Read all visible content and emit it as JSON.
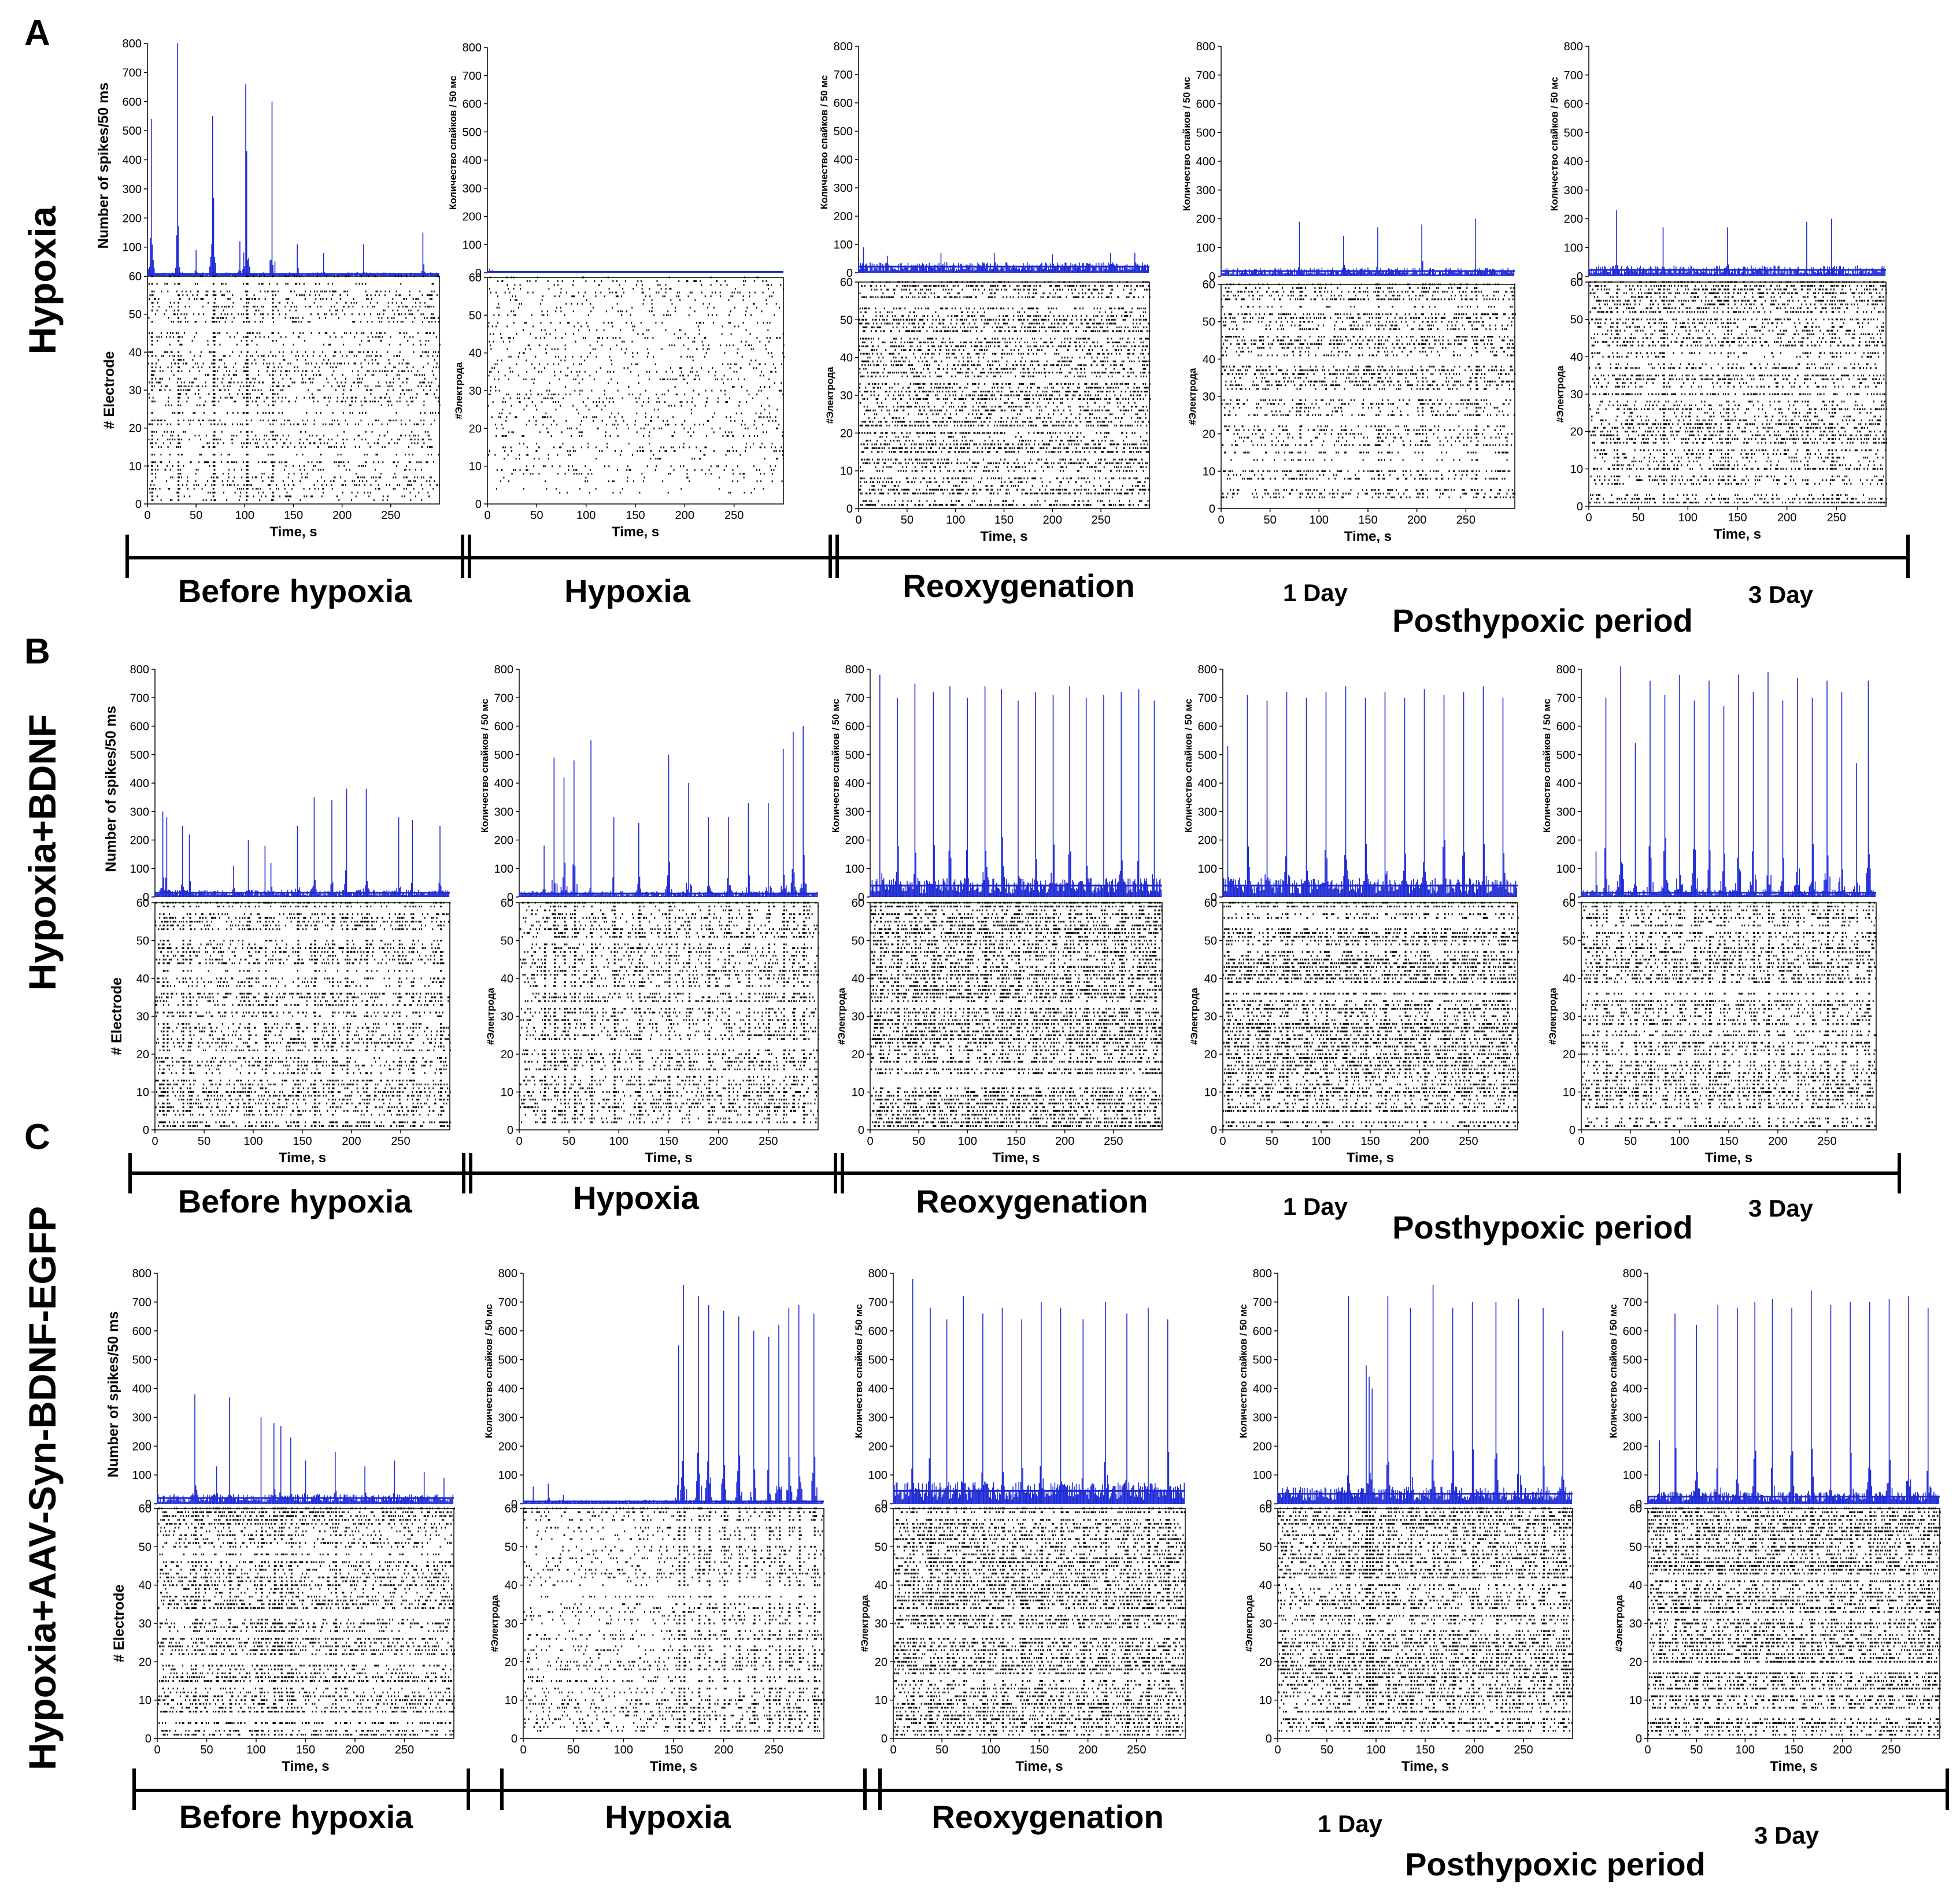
{
  "chart_data": {
    "type": "multi-panel spike histogram + raster",
    "panel_letters": [
      "A",
      "B",
      "C"
    ],
    "x_axis": {
      "label": "Time, s",
      "range": [
        0,
        300
      ],
      "ticks": [
        0,
        50,
        100,
        150,
        200,
        250
      ]
    },
    "spike_axis": {
      "range": [
        0,
        800
      ],
      "ticks": [
        0,
        100,
        200,
        300,
        400,
        500,
        600,
        700,
        800
      ]
    },
    "electrode_axis": {
      "range": [
        0,
        60
      ],
      "ticks": [
        0,
        10,
        20,
        30,
        40,
        50,
        60
      ]
    },
    "ylabels": {
      "spikes_en": "Number of spikes/50 ms",
      "electrode_en": "# Electrode",
      "spikes_ru": "Количество спайков / 50 мс",
      "electrode_ru": "#Электрода"
    },
    "phases": [
      "Before hypoxia",
      "Hypoxia",
      "Reoxygenation"
    ],
    "days": [
      "1 Day",
      "3 Day"
    ],
    "posthypoxic_label": "Posthypoxic period",
    "colors": {
      "histogram": "#1f2bd6",
      "raster": "#000000"
    },
    "rows": [
      {
        "name": "Hypoxia",
        "panels": [
          {
            "phase": "Before hypoxia",
            "baseline": 8,
            "peaks": [
              [
                4,
                540
              ],
              [
                31,
                800
              ],
              [
                50,
                90
              ],
              [
                67,
                550
              ],
              [
                68,
                270
              ],
              [
                95,
                120
              ],
              [
                101,
                660
              ],
              [
                102,
                430
              ],
              [
                128,
                600
              ],
              [
                154,
                110
              ],
              [
                181,
                80
              ],
              [
                222,
                110
              ],
              [
                283,
                150
              ]
            ]
          },
          {
            "phase": "Hypoxia",
            "baseline": 3,
            "peaks": [
              [
                2,
                15
              ],
              [
                5,
                10
              ]
            ]
          },
          {
            "phase": "Reoxygenation",
            "baseline": 22,
            "peaks": [
              [
                5,
                90
              ],
              [
                30,
                60
              ],
              [
                85,
                70
              ],
              [
                140,
                70
              ],
              [
                200,
                65
              ],
              [
                260,
                70
              ],
              [
                285,
                70
              ]
            ]
          },
          {
            "phase": "1 Day",
            "baseline": 18,
            "peaks": [
              [
                80,
                190
              ],
              [
                125,
                140
              ],
              [
                160,
                170
              ],
              [
                205,
                180
              ],
              [
                260,
                200
              ]
            ]
          },
          {
            "phase": "3 Day",
            "baseline": 22,
            "peaks": [
              [
                28,
                230
              ],
              [
                75,
                170
              ],
              [
                140,
                170
              ],
              [
                220,
                190
              ],
              [
                245,
                200
              ]
            ]
          }
        ]
      },
      {
        "name": "Hypoxia+BDNF",
        "panels": [
          {
            "phase": "Before hypoxia",
            "baseline": 15,
            "peaks": [
              [
                8,
                300
              ],
              [
                12,
                280
              ],
              [
                28,
                250
              ],
              [
                35,
                220
              ],
              [
                80,
                110
              ],
              [
                95,
                200
              ],
              [
                112,
                180
              ],
              [
                118,
                120
              ],
              [
                145,
                250
              ],
              [
                162,
                350
              ],
              [
                180,
                340
              ],
              [
                195,
                380
              ],
              [
                215,
                380
              ],
              [
                248,
                280
              ],
              [
                262,
                270
              ],
              [
                290,
                250
              ]
            ]
          },
          {
            "phase": "Hypoxia",
            "baseline": 12,
            "peaks": [
              [
                25,
                180
              ],
              [
                35,
                490
              ],
              [
                45,
                420
              ],
              [
                55,
                480
              ],
              [
                72,
                550
              ],
              [
                95,
                280
              ],
              [
                120,
                260
              ],
              [
                150,
                500
              ],
              [
                170,
                400
              ],
              [
                190,
                280
              ],
              [
                210,
                280
              ],
              [
                230,
                330
              ],
              [
                250,
                330
              ],
              [
                265,
                520
              ],
              [
                275,
                580
              ],
              [
                285,
                600
              ]
            ]
          },
          {
            "phase": "Reoxygenation",
            "baseline": 40,
            "peaks": [
              [
                10,
                780
              ],
              [
                28,
                700
              ],
              [
                46,
                750
              ],
              [
                65,
                720
              ],
              [
                82,
                740
              ],
              [
                100,
                700
              ],
              [
                118,
                740
              ],
              [
                135,
                730
              ],
              [
                152,
                690
              ],
              [
                170,
                720
              ],
              [
                188,
                710
              ],
              [
                205,
                740
              ],
              [
                222,
                700
              ],
              [
                240,
                710
              ],
              [
                258,
                720
              ],
              [
                276,
                730
              ],
              [
                292,
                690
              ]
            ]
          },
          {
            "phase": "1 Day",
            "baseline": 40,
            "peaks": [
              [
                5,
                530
              ],
              [
                25,
                710
              ],
              [
                45,
                690
              ],
              [
                65,
                720
              ],
              [
                85,
                700
              ],
              [
                105,
                720
              ],
              [
                125,
                740
              ],
              [
                145,
                700
              ],
              [
                165,
                720
              ],
              [
                185,
                700
              ],
              [
                205,
                730
              ],
              [
                225,
                710
              ],
              [
                245,
                720
              ],
              [
                265,
                740
              ],
              [
                285,
                700
              ]
            ]
          },
          {
            "phase": "3 Day",
            "baseline": 15,
            "peaks": [
              [
                15,
                160
              ],
              [
                25,
                700
              ],
              [
                40,
                810
              ],
              [
                55,
                540
              ],
              [
                70,
                760
              ],
              [
                85,
                710
              ],
              [
                100,
                780
              ],
              [
                115,
                690
              ],
              [
                130,
                760
              ],
              [
                145,
                670
              ],
              [
                160,
                780
              ],
              [
                175,
                720
              ],
              [
                190,
                790
              ],
              [
                205,
                690
              ],
              [
                220,
                770
              ],
              [
                235,
                700
              ],
              [
                250,
                760
              ],
              [
                265,
                720
              ],
              [
                280,
                470
              ],
              [
                292,
                760
              ]
            ]
          }
        ]
      },
      {
        "name": "Hypoxia+AAV-Syn-BDNF-EGFP",
        "panels": [
          {
            "phase": "Before hypoxia",
            "baseline": 20,
            "peaks": [
              [
                38,
                380
              ],
              [
                60,
                130
              ],
              [
                73,
                370
              ],
              [
                105,
                300
              ],
              [
                118,
                280
              ],
              [
                125,
                270
              ],
              [
                135,
                230
              ],
              [
                150,
                150
              ],
              [
                180,
                180
              ],
              [
                210,
                130
              ],
              [
                240,
                150
              ],
              [
                270,
                110
              ],
              [
                290,
                90
              ]
            ]
          },
          {
            "phase": "Hypoxia",
            "baseline": 8,
            "peaks": [
              [
                10,
                60
              ],
              [
                25,
                70
              ],
              [
                40,
                30
              ],
              [
                155,
                550
              ],
              [
                160,
                760
              ],
              [
                175,
                720
              ],
              [
                185,
                690
              ],
              [
                200,
                670
              ],
              [
                215,
                650
              ],
              [
                230,
                600
              ],
              [
                245,
                580
              ],
              [
                255,
                620
              ],
              [
                265,
                680
              ],
              [
                275,
                690
              ],
              [
                290,
                660
              ]
            ]
          },
          {
            "phase": "Reoxygenation",
            "baseline": 45,
            "peaks": [
              [
                20,
                780
              ],
              [
                38,
                680
              ],
              [
                55,
                640
              ],
              [
                72,
                720
              ],
              [
                92,
                660
              ],
              [
                112,
                680
              ],
              [
                132,
                640
              ],
              [
                152,
                700
              ],
              [
                172,
                680
              ],
              [
                195,
                640
              ],
              [
                218,
                700
              ],
              [
                240,
                660
              ],
              [
                262,
                680
              ],
              [
                282,
                640
              ]
            ]
          },
          {
            "phase": "1 Day",
            "baseline": 35,
            "peaks": [
              [
                72,
                720
              ],
              [
                90,
                480
              ],
              [
                93,
                440
              ],
              [
                96,
                400
              ],
              [
                112,
                720
              ],
              [
                135,
                680
              ],
              [
                158,
                760
              ],
              [
                178,
                680
              ],
              [
                198,
                700
              ],
              [
                222,
                700
              ],
              [
                245,
                710
              ],
              [
                270,
                680
              ],
              [
                290,
                600
              ]
            ]
          },
          {
            "phase": "3 Day",
            "baseline": 25,
            "peaks": [
              [
                12,
                220
              ],
              [
                28,
                660
              ],
              [
                50,
                620
              ],
              [
                72,
                690
              ],
              [
                92,
                680
              ],
              [
                110,
                700
              ],
              [
                128,
                710
              ],
              [
                148,
                680
              ],
              [
                168,
                740
              ],
              [
                188,
                690
              ],
              [
                208,
                700
              ],
              [
                228,
                700
              ],
              [
                248,
                710
              ],
              [
                268,
                720
              ],
              [
                288,
                680
              ]
            ]
          }
        ]
      }
    ]
  }
}
